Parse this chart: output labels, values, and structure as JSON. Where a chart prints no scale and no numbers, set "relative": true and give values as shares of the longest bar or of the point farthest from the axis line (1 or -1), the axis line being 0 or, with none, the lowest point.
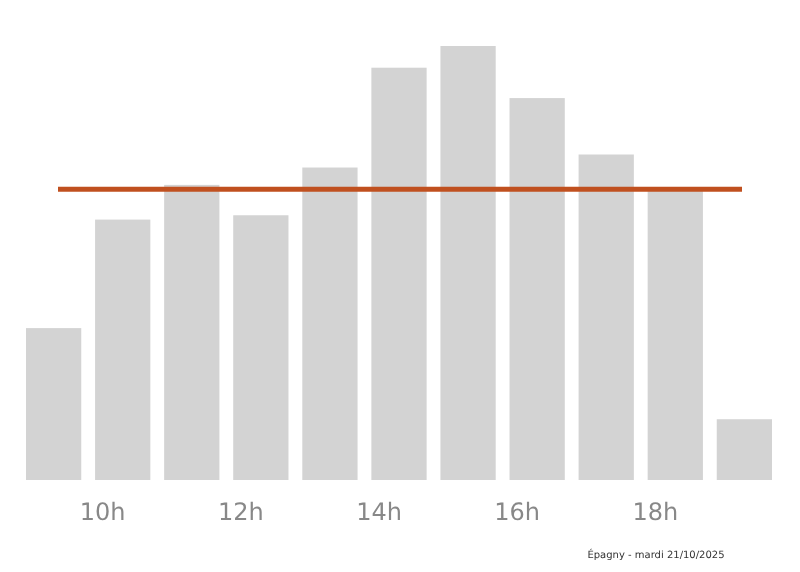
{
  "chart_data": {
    "type": "bar",
    "relative": true,
    "categories": [
      null,
      "10h",
      null,
      "12h",
      null,
      "14h",
      null,
      "16h",
      null,
      "18h",
      null
    ],
    "values": [
      0.35,
      0.6,
      0.68,
      0.61,
      0.72,
      0.95,
      1,
      0.88,
      0.75,
      0.67,
      0.14
    ],
    "color": "#d3d3d3",
    "ref_lines": [
      {
        "axis": "y",
        "value": 0.67,
        "color": "#c0501f"
      }
    ],
    "annotations": [
      "Épagny - mardi 21/10/2025"
    ]
  }
}
